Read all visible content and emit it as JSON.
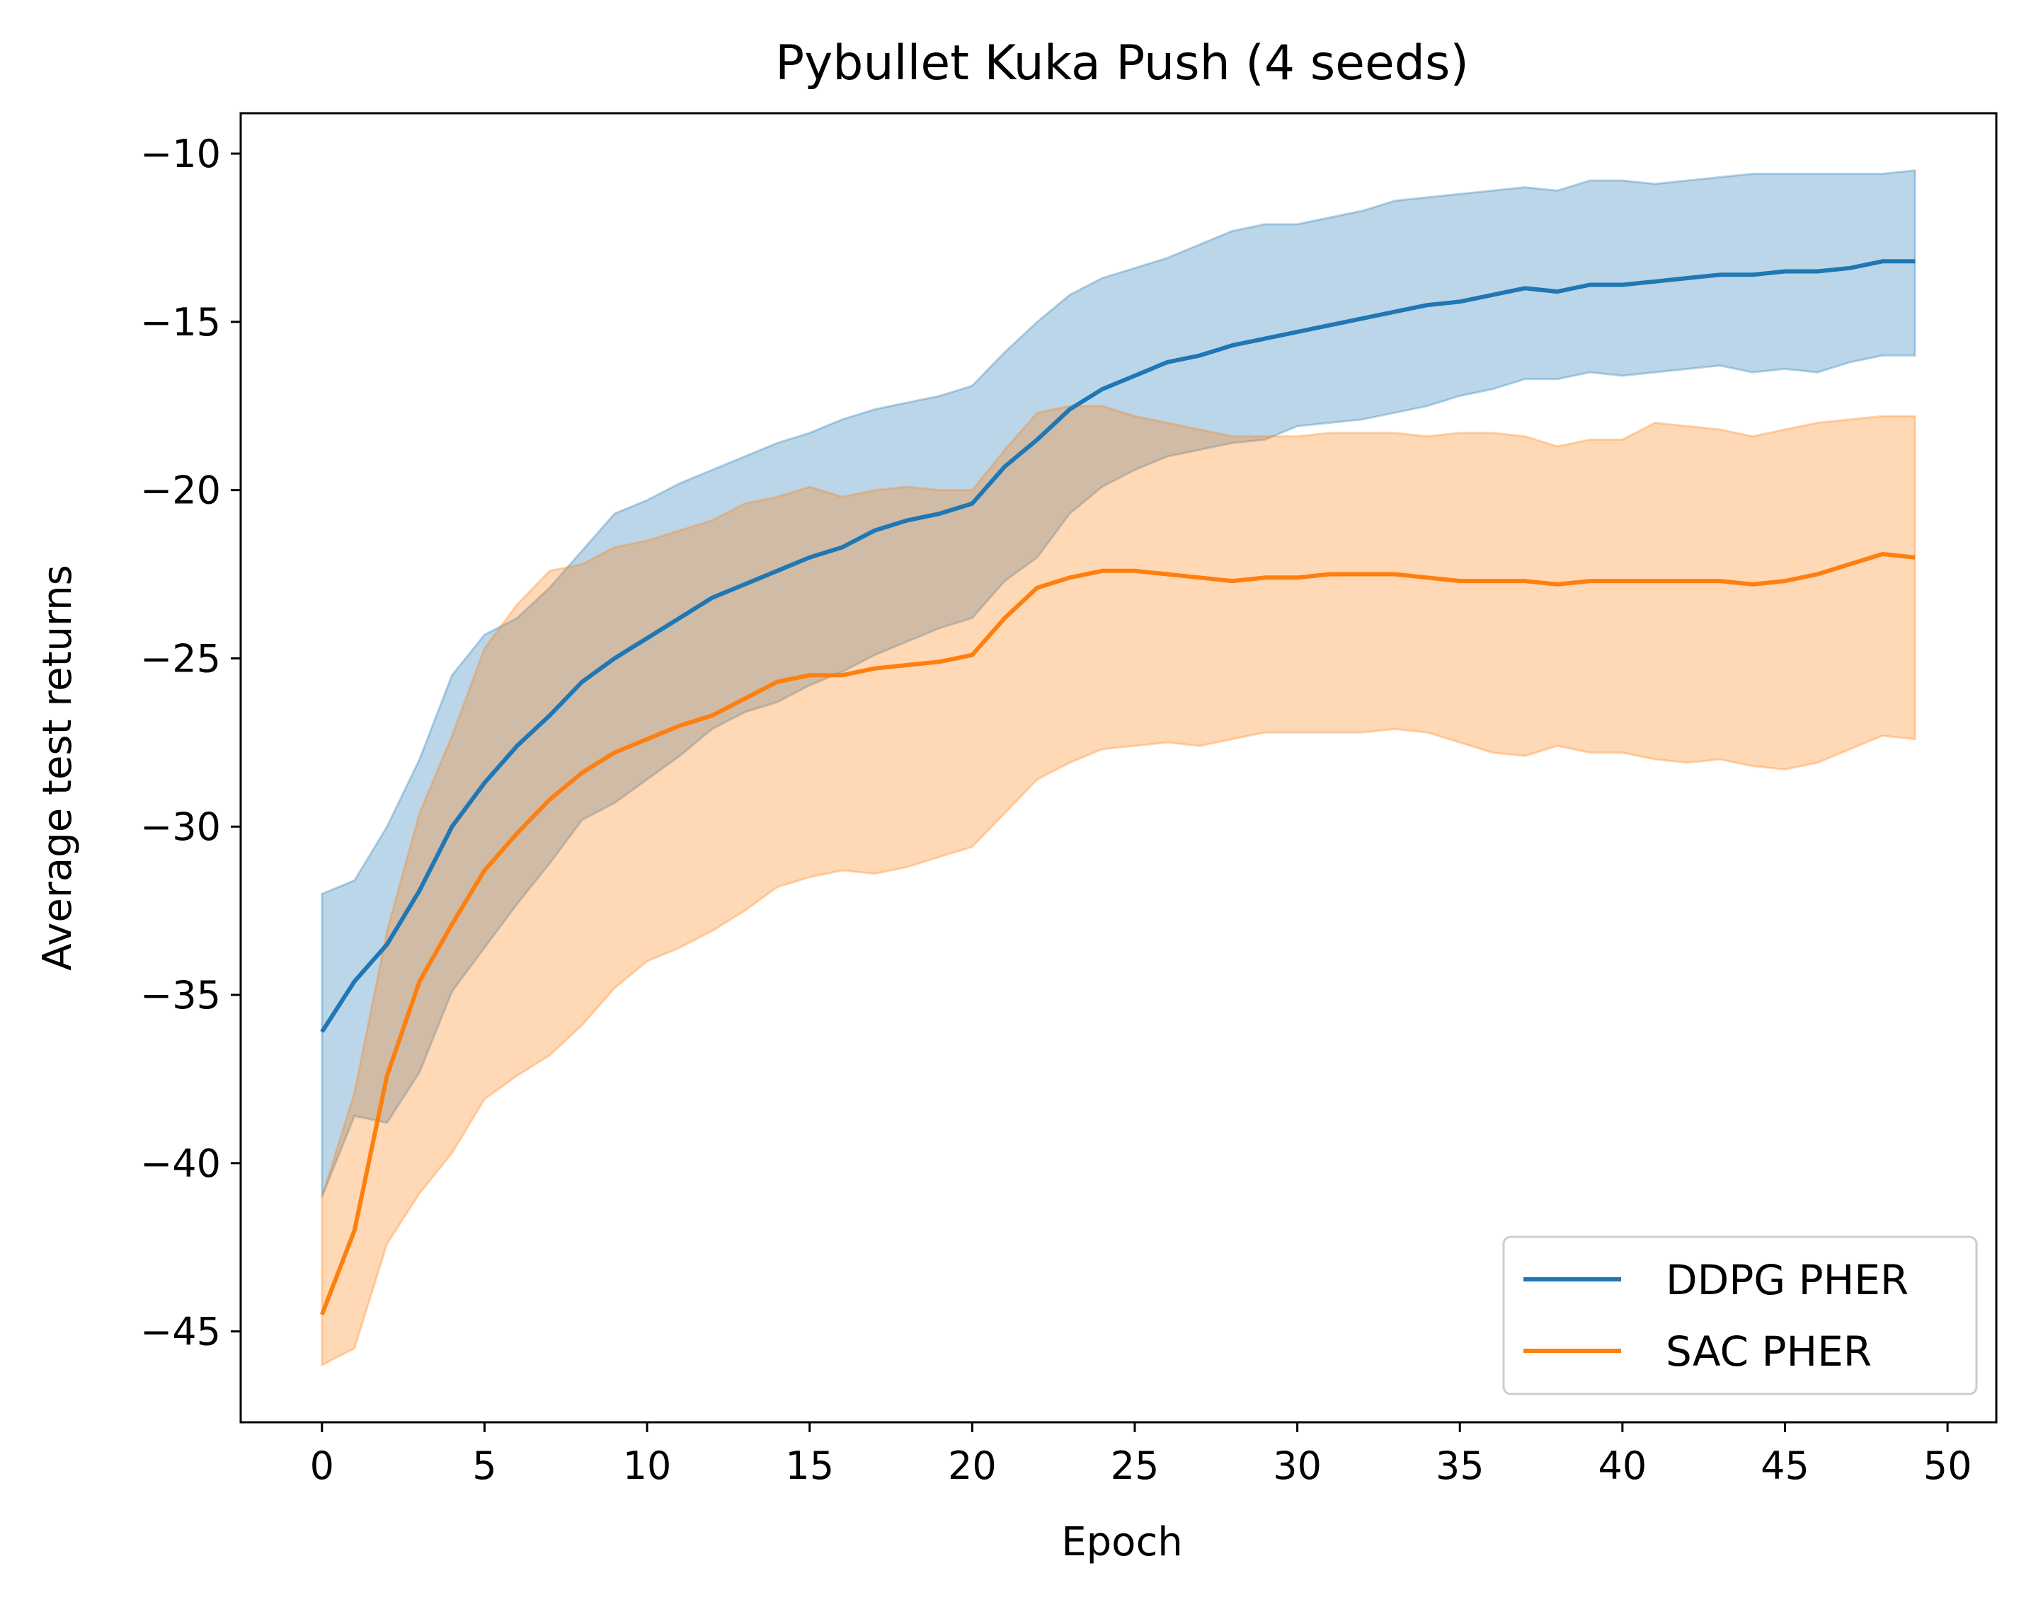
{
  "chart_data": {
    "type": "line",
    "title": "Pybullet Kuka Push (4 seeds)",
    "xlabel": "Epoch",
    "ylabel": "Average test returns",
    "xlim": [
      -2.5,
      51.5
    ],
    "ylim": [
      -47.7,
      -8.8
    ],
    "xticks": [
      0,
      5,
      10,
      15,
      20,
      25,
      30,
      35,
      40,
      45,
      50
    ],
    "yticks": [
      -45,
      -40,
      -35,
      -30,
      -25,
      -20,
      -15,
      -10
    ],
    "xtick_labels": [
      "0",
      "5",
      "10",
      "15",
      "20",
      "25",
      "30",
      "35",
      "40",
      "45",
      "50"
    ],
    "ytick_labels": [
      "−45",
      "−40",
      "−35",
      "−30",
      "−25",
      "−20",
      "−15",
      "−10"
    ],
    "grid": false,
    "legend_position": "lower-right",
    "x": [
      0,
      1,
      2,
      3,
      4,
      5,
      6,
      7,
      8,
      9,
      10,
      11,
      12,
      13,
      14,
      15,
      16,
      17,
      18,
      19,
      20,
      21,
      22,
      23,
      24,
      25,
      26,
      27,
      28,
      29,
      30,
      31,
      32,
      33,
      34,
      35,
      36,
      37,
      38,
      39,
      40,
      41,
      42,
      43,
      44,
      45,
      46,
      47,
      48,
      49
    ],
    "series": [
      {
        "name": "DDPG PHER",
        "color": "#1f77b4",
        "fill_color": "#1f77b4",
        "values": [
          -36.1,
          -34.6,
          -33.5,
          -31.9,
          -30.0,
          -28.7,
          -27.6,
          -26.7,
          -25.7,
          -25.0,
          -24.4,
          -23.8,
          -23.2,
          -22.8,
          -22.4,
          -22.0,
          -21.7,
          -21.2,
          -20.9,
          -20.7,
          -20.4,
          -19.3,
          -18.5,
          -17.6,
          -17.0,
          -16.6,
          -16.2,
          -16.0,
          -15.7,
          -15.5,
          -15.3,
          -15.1,
          -14.9,
          -14.7,
          -14.5,
          -14.4,
          -14.2,
          -14.0,
          -14.1,
          -13.9,
          -13.9,
          -13.8,
          -13.7,
          -13.6,
          -13.6,
          -13.5,
          -13.5,
          -13.4,
          -13.2,
          -13.2
        ],
        "upper": [
          -32.0,
          -31.6,
          -30.0,
          -28.0,
          -25.5,
          -24.3,
          -23.8,
          -22.9,
          -21.8,
          -20.7,
          -20.3,
          -19.8,
          -19.4,
          -19.0,
          -18.6,
          -18.3,
          -17.9,
          -17.6,
          -17.4,
          -17.2,
          -16.9,
          -15.9,
          -15.0,
          -14.2,
          -13.7,
          -13.4,
          -13.1,
          -12.7,
          -12.3,
          -12.1,
          -12.1,
          -11.9,
          -11.7,
          -11.4,
          -11.3,
          -11.2,
          -11.1,
          -11.0,
          -11.1,
          -10.8,
          -10.8,
          -10.9,
          -10.8,
          -10.7,
          -10.6,
          -10.6,
          -10.6,
          -10.6,
          -10.6,
          -10.5
        ],
        "lower": [
          -41.0,
          -38.6,
          -38.8,
          -37.3,
          -34.9,
          -33.6,
          -32.3,
          -31.1,
          -29.8,
          -29.3,
          -28.6,
          -27.9,
          -27.1,
          -26.6,
          -26.3,
          -25.8,
          -25.4,
          -24.9,
          -24.5,
          -24.1,
          -23.8,
          -22.7,
          -22.0,
          -20.7,
          -19.9,
          -19.4,
          -19.0,
          -18.8,
          -18.6,
          -18.5,
          -18.1,
          -18.0,
          -17.9,
          -17.7,
          -17.5,
          -17.2,
          -17.0,
          -16.7,
          -16.7,
          -16.5,
          -16.6,
          -16.5,
          -16.4,
          -16.3,
          -16.5,
          -16.4,
          -16.5,
          -16.2,
          -16.0,
          -16.0
        ]
      },
      {
        "name": "SAC PHER",
        "color": "#ff7f0e",
        "fill_color": "#ff7f0e",
        "values": [
          -44.5,
          -42.0,
          -37.4,
          -34.6,
          -32.9,
          -31.3,
          -30.2,
          -29.2,
          -28.4,
          -27.8,
          -27.4,
          -27.0,
          -26.7,
          -26.2,
          -25.7,
          -25.5,
          -25.5,
          -25.3,
          -25.2,
          -25.1,
          -24.9,
          -23.8,
          -22.9,
          -22.6,
          -22.4,
          -22.4,
          -22.5,
          -22.6,
          -22.7,
          -22.6,
          -22.6,
          -22.5,
          -22.5,
          -22.5,
          -22.6,
          -22.7,
          -22.7,
          -22.7,
          -22.8,
          -22.7,
          -22.7,
          -22.7,
          -22.7,
          -22.7,
          -22.8,
          -22.7,
          -22.5,
          -22.2,
          -21.9,
          -22.0
        ],
        "upper": [
          -41.0,
          -37.9,
          -33.1,
          -29.6,
          -27.3,
          -24.7,
          -23.4,
          -22.4,
          -22.2,
          -21.7,
          -21.5,
          -21.2,
          -20.9,
          -20.4,
          -20.2,
          -19.9,
          -20.2,
          -20.0,
          -19.9,
          -20.0,
          -20.0,
          -18.8,
          -17.7,
          -17.5,
          -17.5,
          -17.8,
          -18.0,
          -18.2,
          -18.4,
          -18.4,
          -18.4,
          -18.3,
          -18.3,
          -18.3,
          -18.4,
          -18.3,
          -18.3,
          -18.4,
          -18.7,
          -18.5,
          -18.5,
          -18.0,
          -18.1,
          -18.2,
          -18.4,
          -18.2,
          -18.0,
          -17.9,
          -17.8,
          -17.8
        ],
        "lower": [
          -46.0,
          -45.5,
          -42.4,
          -40.9,
          -39.7,
          -38.1,
          -37.4,
          -36.8,
          -35.9,
          -34.8,
          -34.0,
          -33.6,
          -33.1,
          -32.5,
          -31.8,
          -31.5,
          -31.3,
          -31.4,
          -31.2,
          -30.9,
          -30.6,
          -29.6,
          -28.6,
          -28.1,
          -27.7,
          -27.6,
          -27.5,
          -27.6,
          -27.4,
          -27.2,
          -27.2,
          -27.2,
          -27.2,
          -27.1,
          -27.2,
          -27.5,
          -27.8,
          -27.9,
          -27.6,
          -27.8,
          -27.8,
          -28.0,
          -28.1,
          -28.0,
          -28.2,
          -28.3,
          -28.1,
          -27.7,
          -27.3,
          -27.4
        ]
      }
    ]
  }
}
